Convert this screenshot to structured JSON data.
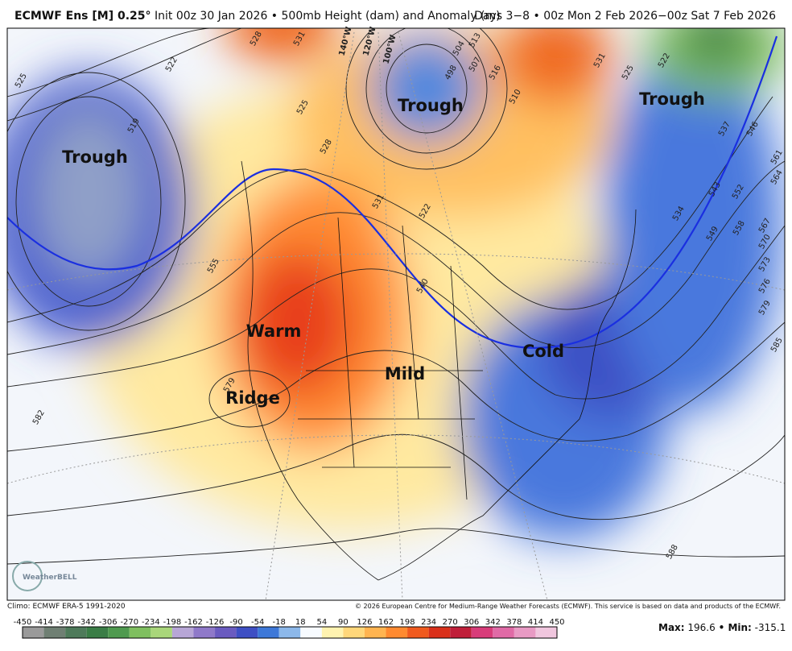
{
  "header": {
    "model": "ECMWF Ens [M] 0.25°",
    "description": "Init 00z 30 Jan 2026 • 500mb Height (dam) and Anomaly (m)",
    "valid": "Days 3−8 • 00z Mon 2 Feb 2026−00z Sat 7 Feb 2026"
  },
  "map": {
    "features": [
      "Trough",
      "Trough",
      "Trough",
      "Warm",
      "Ridge",
      "Mild",
      "Cold"
    ],
    "contour_labels": [
      "525",
      "528",
      "531",
      "522",
      "519",
      "525",
      "528",
      "531",
      "522",
      "555",
      "540",
      "582",
      "579",
      "534",
      "543",
      "549",
      "552",
      "558",
      "561",
      "564",
      "567",
      "570",
      "573",
      "576",
      "579",
      "585",
      "588",
      "537",
      "546",
      "522",
      "525",
      "531",
      "513",
      "516",
      "507",
      "504",
      "510",
      "498"
    ],
    "longitudes": [
      "140°W",
      "120°W",
      "100°W"
    ],
    "logo": "WeatherBELL"
  },
  "footer": {
    "climo": "Climo: ECMWF ERA-5 1991-2020",
    "copyright": "© 2026 European Centre for Medium-Range Weather Forecasts (ECMWF). This service is based on data and products of the ECMWF."
  },
  "legend": {
    "ticks": [
      -450,
      -414,
      -378,
      -342,
      -306,
      -270,
      -234,
      -198,
      -162,
      -126,
      -90,
      -54,
      -18,
      18,
      54,
      90,
      126,
      162,
      198,
      234,
      270,
      306,
      342,
      378,
      414,
      450
    ],
    "colors": [
      "#9a9a9a",
      "#6f7f73",
      "#4e7a5a",
      "#3a7d46",
      "#4f9a4f",
      "#7fbf5f",
      "#a9d67a",
      "#b7a6d6",
      "#8f79c9",
      "#6a5bc0",
      "#3e4fc4",
      "#3d78d8",
      "#8cb8ea",
      "#f7fbff",
      "#fff3b0",
      "#ffd77a",
      "#ffb450",
      "#ff8a30",
      "#f05a1e",
      "#d9301a",
      "#c01f3a",
      "#d83c7a",
      "#e06aa6",
      "#e89ac4",
      "#f0c6de"
    ],
    "max_label": "Max:",
    "max": 196.6,
    "min_label": "• Min:",
    "min": -315.1
  }
}
